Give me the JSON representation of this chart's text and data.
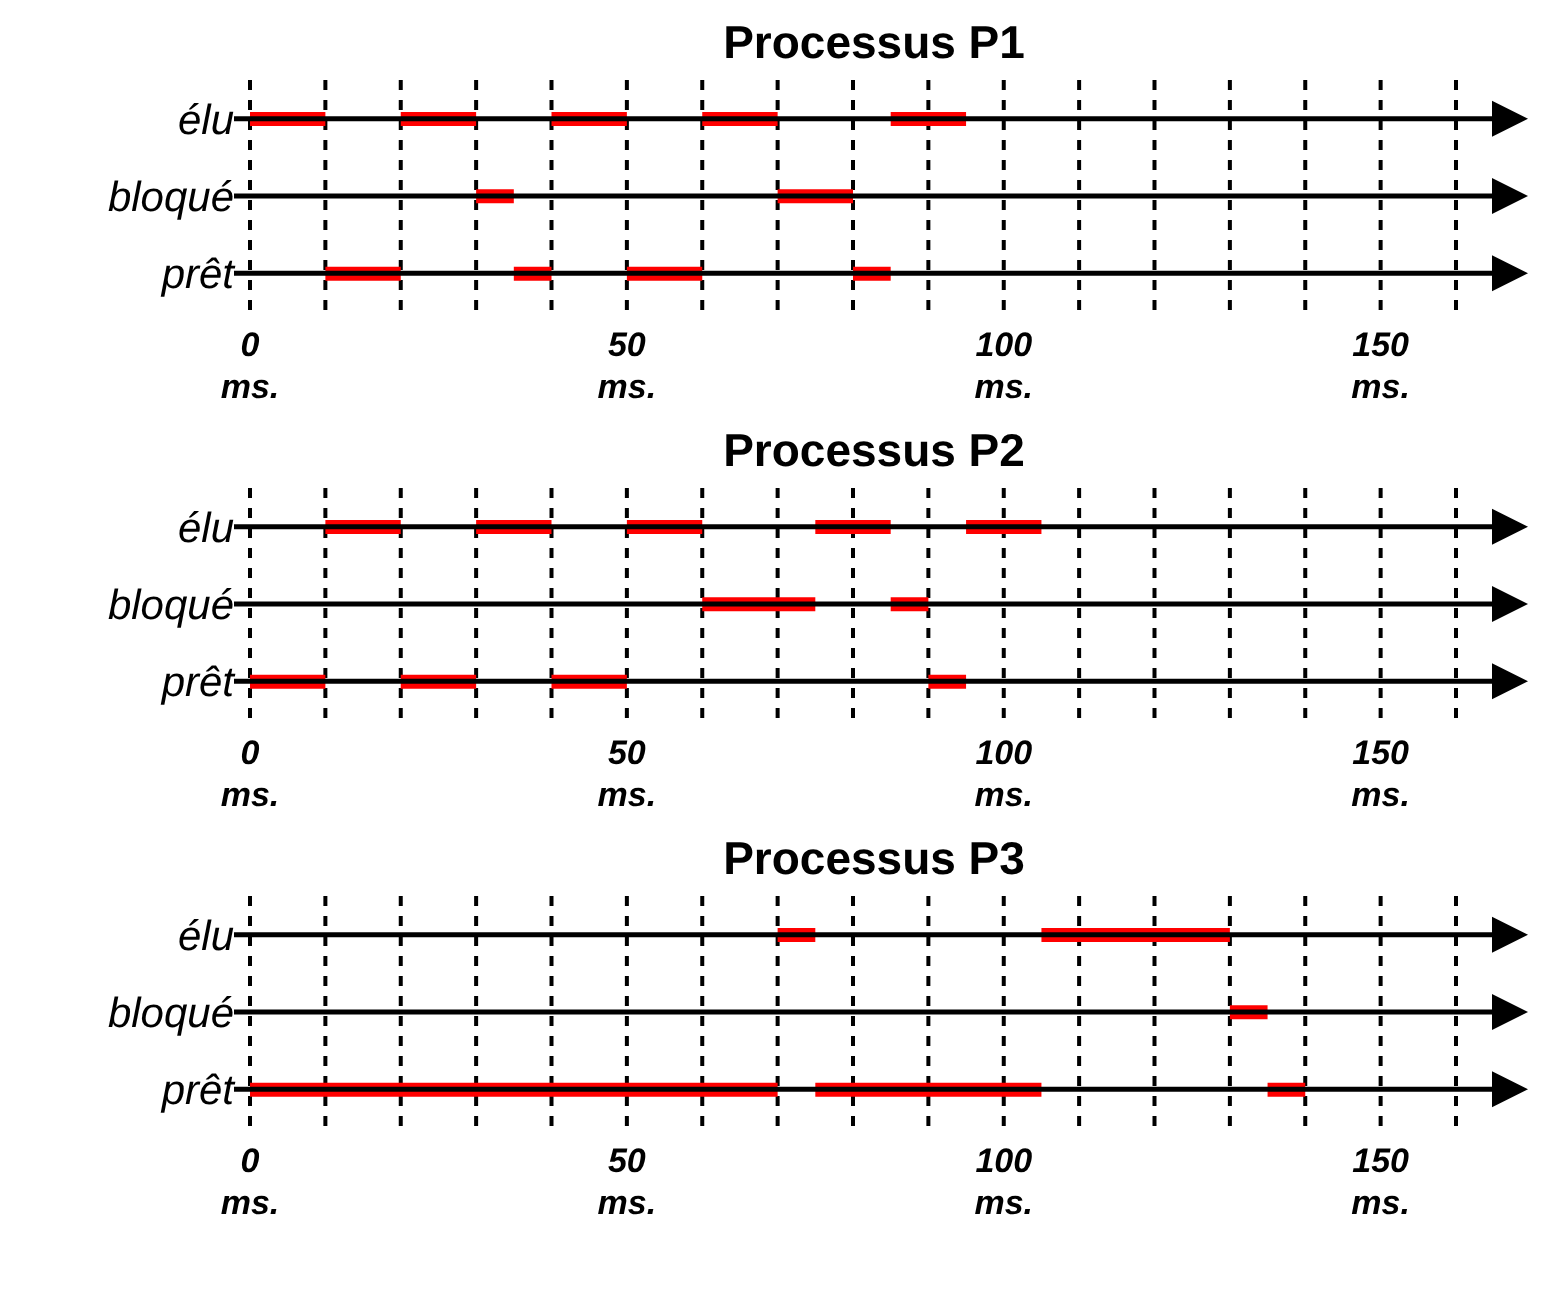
{
  "chart_data": [
    {
      "type": "bar",
      "title": "Processus P1",
      "orientation": "horizontal",
      "categories": [
        "élu",
        "bloqué",
        "prêt"
      ],
      "xlim": [
        0,
        160
      ],
      "xticks": [
        {
          "value": 0,
          "label": "0 ms."
        },
        {
          "value": 10,
          "label": null
        },
        {
          "value": 20,
          "label": null
        },
        {
          "value": 30,
          "label": null
        },
        {
          "value": 40,
          "label": null
        },
        {
          "value": 50,
          "label": "50 ms."
        },
        {
          "value": 60,
          "label": null
        },
        {
          "value": 70,
          "label": null
        },
        {
          "value": 80,
          "label": null
        },
        {
          "value": 90,
          "label": null
        },
        {
          "value": 100,
          "label": "100 ms."
        },
        {
          "value": 110,
          "label": null
        },
        {
          "value": 120,
          "label": null
        },
        {
          "value": 130,
          "label": null
        },
        {
          "value": 140,
          "label": null
        },
        {
          "value": 150,
          "label": "150 ms."
        },
        {
          "value": 160,
          "label": null
        }
      ],
      "grid": "x",
      "series": [
        {
          "color": "#ff0000",
          "base": [
            0,
            30,
            10
          ],
          "values": [
            10,
            5,
            10
          ]
        },
        {
          "color": "#ff0000",
          "base": [
            20,
            70,
            35
          ],
          "values": [
            10,
            10,
            5
          ]
        },
        {
          "color": "#ff0000",
          "base": [
            40,
            null,
            50
          ],
          "values": [
            10,
            null,
            10
          ]
        },
        {
          "color": "#ff0000",
          "base": [
            60,
            null,
            80
          ],
          "values": [
            10,
            null,
            5
          ]
        },
        {
          "color": "#ff0000",
          "base": [
            85,
            null,
            null
          ],
          "values": [
            10,
            null,
            null
          ]
        }
      ]
    },
    {
      "type": "bar",
      "title": "Processus P2",
      "orientation": "horizontal",
      "categories": [
        "élu",
        "bloqué",
        "prêt"
      ],
      "xlim": [
        0,
        160
      ],
      "xticks": [
        {
          "value": 0,
          "label": "0 ms."
        },
        {
          "value": 10,
          "label": null
        },
        {
          "value": 20,
          "label": null
        },
        {
          "value": 30,
          "label": null
        },
        {
          "value": 40,
          "label": null
        },
        {
          "value": 50,
          "label": "50 ms."
        },
        {
          "value": 60,
          "label": null
        },
        {
          "value": 70,
          "label": null
        },
        {
          "value": 80,
          "label": null
        },
        {
          "value": 90,
          "label": null
        },
        {
          "value": 100,
          "label": "100 ms."
        },
        {
          "value": 110,
          "label": null
        },
        {
          "value": 120,
          "label": null
        },
        {
          "value": 130,
          "label": null
        },
        {
          "value": 140,
          "label": null
        },
        {
          "value": 150,
          "label": "150 ms."
        },
        {
          "value": 160,
          "label": null
        }
      ],
      "grid": "x",
      "series": [
        {
          "color": "#ff0000",
          "base": [
            10,
            60,
            0
          ],
          "values": [
            10,
            15,
            10
          ]
        },
        {
          "color": "#ff0000",
          "base": [
            30,
            85,
            20
          ],
          "values": [
            10,
            5,
            10
          ]
        },
        {
          "color": "#ff0000",
          "base": [
            50,
            null,
            40
          ],
          "values": [
            10,
            null,
            10
          ]
        },
        {
          "color": "#ff0000",
          "base": [
            75,
            null,
            90
          ],
          "values": [
            10,
            null,
            5
          ]
        },
        {
          "color": "#ff0000",
          "base": [
            95,
            null,
            null
          ],
          "values": [
            10,
            null,
            null
          ]
        }
      ]
    },
    {
      "type": "bar",
      "title": "Processus P3",
      "orientation": "horizontal",
      "categories": [
        "élu",
        "bloqué",
        "prêt"
      ],
      "xlim": [
        0,
        160
      ],
      "xticks": [
        {
          "value": 0,
          "label": "0 ms."
        },
        {
          "value": 10,
          "label": null
        },
        {
          "value": 20,
          "label": null
        },
        {
          "value": 30,
          "label": null
        },
        {
          "value": 40,
          "label": null
        },
        {
          "value": 50,
          "label": "50 ms."
        },
        {
          "value": 60,
          "label": null
        },
        {
          "value": 70,
          "label": null
        },
        {
          "value": 80,
          "label": null
        },
        {
          "value": 90,
          "label": null
        },
        {
          "value": 100,
          "label": "100 ms."
        },
        {
          "value": 110,
          "label": null
        },
        {
          "value": 120,
          "label": null
        },
        {
          "value": 130,
          "label": null
        },
        {
          "value": 140,
          "label": null
        },
        {
          "value": 150,
          "label": "150 ms."
        },
        {
          "value": 160,
          "label": null
        }
      ],
      "grid": "x",
      "series": [
        {
          "color": "#ff0000",
          "base": [
            70,
            130,
            0
          ],
          "values": [
            5,
            5,
            70
          ]
        },
        {
          "color": "#ff0000",
          "base": [
            105,
            null,
            75
          ],
          "values": [
            25,
            null,
            30
          ]
        },
        {
          "color": "#ff0000",
          "base": [
            null,
            null,
            135
          ],
          "values": [
            null,
            null,
            5
          ]
        }
      ]
    }
  ]
}
